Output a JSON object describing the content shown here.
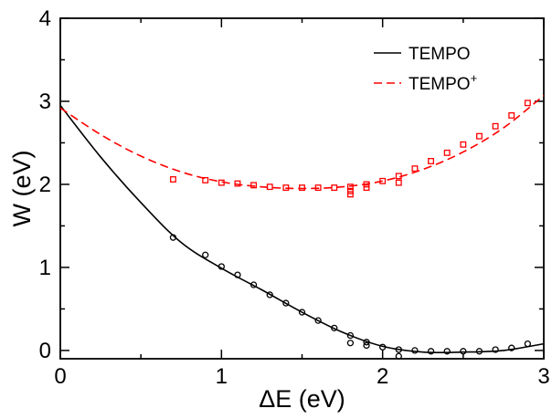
{
  "chart_data": {
    "type": "scatter",
    "title": "",
    "xlabel": "ΔE (eV)",
    "ylabel": "W (eV)",
    "xlim": [
      0,
      3
    ],
    "ylim": [
      -0.1,
      4
    ],
    "x_ticks": [
      "0",
      "1",
      "2",
      "3"
    ],
    "y_ticks": [
      "0",
      "1",
      "2",
      "3",
      "4"
    ],
    "x_tick_values": [
      0,
      1,
      2,
      3
    ],
    "y_tick_values": [
      0,
      1,
      2,
      3,
      4
    ],
    "grid": false,
    "legend_position": "top-right",
    "legend": [
      {
        "name": "TEMPO",
        "color": "#000000",
        "dash": "solid"
      },
      {
        "name": "TEMPO",
        "superscript": "+",
        "color": "#ff0000",
        "dash": "dashed"
      }
    ],
    "series": [
      {
        "name": "TEMPO",
        "color": "#000000",
        "marker": "circle",
        "line_style": "solid",
        "points": [
          [
            0.7,
            1.36
          ],
          [
            0.9,
            1.15
          ],
          [
            1.0,
            1.01
          ],
          [
            1.1,
            0.91
          ],
          [
            1.2,
            0.79
          ],
          [
            1.3,
            0.67
          ],
          [
            1.4,
            0.57
          ],
          [
            1.5,
            0.46
          ],
          [
            1.6,
            0.36
          ],
          [
            1.7,
            0.27
          ],
          [
            1.8,
            0.18
          ],
          [
            1.8,
            0.09
          ],
          [
            1.9,
            0.1
          ],
          [
            1.9,
            0.06
          ],
          [
            2.0,
            0.04
          ],
          [
            2.1,
            0.01
          ],
          [
            2.1,
            -0.07
          ],
          [
            2.2,
            0.0
          ],
          [
            2.3,
            -0.01
          ],
          [
            2.4,
            -0.01
          ],
          [
            2.5,
            -0.01
          ],
          [
            2.6,
            -0.01
          ],
          [
            2.7,
            0.01
          ],
          [
            2.8,
            0.03
          ],
          [
            2.9,
            0.08
          ]
        ],
        "fit_curve": [
          [
            0.0,
            2.95
          ],
          [
            0.25,
            2.33
          ],
          [
            0.5,
            1.78
          ],
          [
            0.75,
            1.3
          ],
          [
            1.0,
            0.99
          ],
          [
            1.25,
            0.73
          ],
          [
            1.5,
            0.46
          ],
          [
            1.75,
            0.22
          ],
          [
            2.0,
            0.05
          ],
          [
            2.25,
            -0.02
          ],
          [
            2.5,
            -0.02
          ],
          [
            2.75,
            0.0
          ],
          [
            3.0,
            0.08
          ]
        ]
      },
      {
        "name": "TEMPO+",
        "color": "#ff0000",
        "marker": "square",
        "line_style": "dashed",
        "points": [
          [
            0.7,
            2.06
          ],
          [
            0.9,
            2.05
          ],
          [
            1.0,
            2.02
          ],
          [
            1.1,
            2.01
          ],
          [
            1.2,
            1.99
          ],
          [
            1.3,
            1.97
          ],
          [
            1.4,
            1.96
          ],
          [
            1.5,
            1.96
          ],
          [
            1.6,
            1.96
          ],
          [
            1.7,
            1.96
          ],
          [
            1.8,
            1.97
          ],
          [
            1.8,
            1.92
          ],
          [
            1.8,
            1.88
          ],
          [
            1.9,
            1.96
          ],
          [
            1.9,
            2.0
          ],
          [
            2.0,
            2.04
          ],
          [
            2.1,
            2.02
          ],
          [
            2.1,
            2.1
          ],
          [
            2.2,
            2.19
          ],
          [
            2.3,
            2.28
          ],
          [
            2.4,
            2.38
          ],
          [
            2.5,
            2.48
          ],
          [
            2.6,
            2.58
          ],
          [
            2.7,
            2.7
          ],
          [
            2.8,
            2.83
          ],
          [
            2.9,
            2.98
          ]
        ],
        "fit_curve": [
          [
            0.0,
            2.92
          ],
          [
            0.25,
            2.6
          ],
          [
            0.5,
            2.34
          ],
          [
            0.75,
            2.15
          ],
          [
            1.0,
            2.03
          ],
          [
            1.25,
            1.97
          ],
          [
            1.5,
            1.95
          ],
          [
            1.75,
            1.97
          ],
          [
            2.0,
            2.04
          ],
          [
            2.25,
            2.18
          ],
          [
            2.5,
            2.39
          ],
          [
            2.75,
            2.68
          ],
          [
            3.0,
            3.07
          ]
        ]
      }
    ]
  }
}
